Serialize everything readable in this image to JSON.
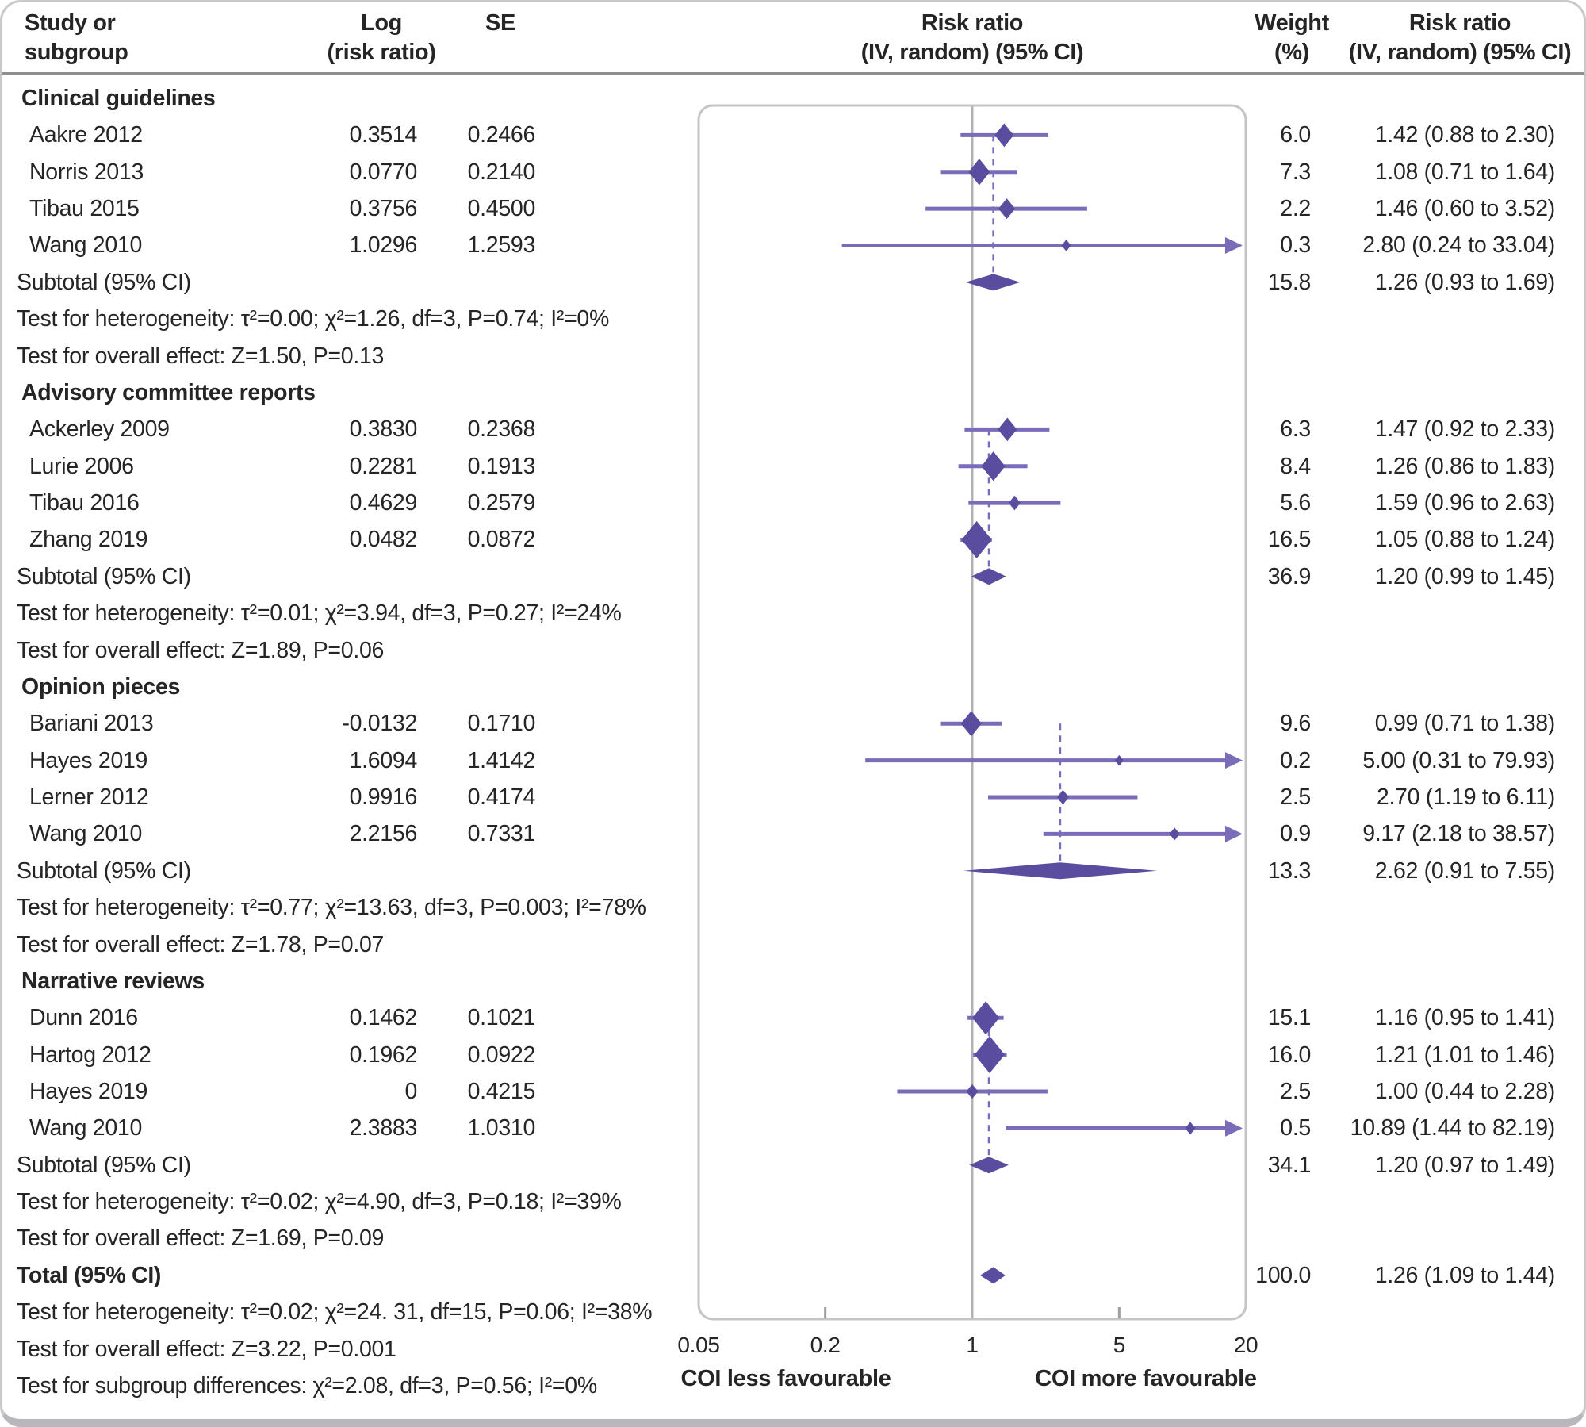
{
  "header": {
    "study": [
      "Study or",
      "subgroup"
    ],
    "log": [
      "Log",
      "(risk ratio)"
    ],
    "se": "SE",
    "rr_plot": [
      "Risk ratio",
      "(IV, random) (95% CI)"
    ],
    "weight": [
      "Weight",
      "(%)"
    ],
    "rr_text": [
      "Risk ratio",
      "(IV, random) (95% CI)"
    ]
  },
  "labels": {
    "subtotal": "Subtotal (95% CI)",
    "total": "Total (95% CI)"
  },
  "axis": {
    "min": 0.05,
    "max": 20,
    "scale": "log",
    "ticks": [
      {
        "label": "0.05",
        "value": 0.05,
        "mark": false
      },
      {
        "label": "0.2",
        "value": 0.2,
        "mark": true
      },
      {
        "label": "1",
        "value": 1,
        "mark": false
      },
      {
        "label": "5",
        "value": 5,
        "mark": true
      },
      {
        "label": "20",
        "value": 20,
        "mark": false
      }
    ],
    "reference_value": 1,
    "label_left": "COI less favourable",
    "label_right": "COI more favourable"
  },
  "colors": {
    "marker": "#5a4da0",
    "ci_line": "#7a6cb8",
    "reference_line": "#b2b2b2",
    "frame": "#c5c5c5",
    "text": "#252525",
    "header_rule": "#8f8f8f"
  },
  "chart_data": {
    "type": "forest",
    "effect_measure": "Risk ratio (IV, random) (95% CI)",
    "groups": [
      {
        "name": "Clinical guidelines",
        "studies": [
          {
            "study": "Aakre 2012",
            "log_rr": "0.3514",
            "se": "0.2466",
            "weight": "6.0",
            "rr": 1.42,
            "ci_low": 0.88,
            "ci_high": 2.3,
            "rr_ci": "1.42 (0.88 to 2.30)",
            "marker": 24
          },
          {
            "study": "Norris 2013",
            "log_rr": "0.0770",
            "se": "0.2140",
            "weight": "7.3",
            "rr": 1.08,
            "ci_low": 0.71,
            "ci_high": 1.64,
            "rr_ci": "1.08 (0.71 to 1.64)",
            "marker": 27
          },
          {
            "study": "Tibau 2015",
            "log_rr": "0.3756",
            "se": "0.4500",
            "weight": "2.2",
            "rr": 1.46,
            "ci_low": 0.6,
            "ci_high": 3.52,
            "rr_ci": "1.46 (0.60 to 3.52)",
            "marker": 21
          },
          {
            "study": "Wang 2010",
            "log_rr": "1.0296",
            "se": "1.2593",
            "weight": "0.3",
            "rr": 2.8,
            "ci_low": 0.24,
            "ci_high": 33.04,
            "rr_ci": "2.80 (0.24 to 33.04)",
            "marker": 12
          }
        ],
        "subtotal": {
          "weight": "15.8",
          "rr": 1.26,
          "ci_low": 0.93,
          "ci_high": 1.69,
          "rr_ci": "1.26 (0.93 to 1.69)"
        },
        "heterogeneity": "Test for heterogeneity: τ²=0.00; χ²=1.26, df=3, P=0.74; I²=0%",
        "overall_effect": "Test for overall effect: Z=1.50, P=0.13"
      },
      {
        "name": "Advisory committee reports",
        "studies": [
          {
            "study": "Ackerley 2009",
            "log_rr": "0.3830",
            "se": "0.2368",
            "weight": "6.3",
            "rr": 1.47,
            "ci_low": 0.92,
            "ci_high": 2.33,
            "rr_ci": "1.47 (0.92 to 2.33)",
            "marker": 24
          },
          {
            "study": "Lurie 2006",
            "log_rr": "0.2281",
            "se": "0.1913",
            "weight": "8.4",
            "rr": 1.26,
            "ci_low": 0.86,
            "ci_high": 1.83,
            "rr_ci": "1.26 (0.86 to 1.83)",
            "marker": 30
          },
          {
            "study": "Tibau 2016",
            "log_rr": "0.4629",
            "se": "0.2579",
            "weight": "5.6",
            "rr": 1.59,
            "ci_low": 0.96,
            "ci_high": 2.63,
            "rr_ci": "1.59 (0.96 to 2.63)",
            "marker": 15
          },
          {
            "study": "Zhang 2019",
            "log_rr": "0.0482",
            "se": "0.0872",
            "weight": "16.5",
            "rr": 1.05,
            "ci_low": 0.88,
            "ci_high": 1.24,
            "rr_ci": "1.05 (0.88 to 1.24)",
            "marker": 38
          }
        ],
        "subtotal": {
          "weight": "36.9",
          "rr": 1.2,
          "ci_low": 0.99,
          "ci_high": 1.45,
          "rr_ci": "1.20 (0.99 to 1.45)"
        },
        "heterogeneity": "Test for heterogeneity: τ²=0.01; χ²=3.94, df=3, P=0.27; I²=24%",
        "overall_effect": "Test for overall effect: Z=1.89, P=0.06"
      },
      {
        "name": "Opinion pieces",
        "studies": [
          {
            "study": "Bariani 2013",
            "log_rr": "-0.0132",
            "se": "0.1710",
            "weight": "9.6",
            "rr": 0.99,
            "ci_low": 0.71,
            "ci_high": 1.38,
            "rr_ci": "0.99 (0.71 to 1.38)",
            "marker": 26
          },
          {
            "study": "Hayes 2019",
            "log_rr": "1.6094",
            "se": "1.4142",
            "weight": "0.2",
            "rr": 5.0,
            "ci_low": 0.31,
            "ci_high": 79.93,
            "rr_ci": "5.00 (0.31 to 79.93)",
            "marker": 11
          },
          {
            "study": "Lerner 2012",
            "log_rr": "0.9916",
            "se": "0.4174",
            "weight": "2.5",
            "rr": 2.7,
            "ci_low": 1.19,
            "ci_high": 6.11,
            "rr_ci": "2.70 (1.19 to 6.11)",
            "marker": 15
          },
          {
            "study": "Wang 2010",
            "log_rr": "2.2156",
            "se": "0.7331",
            "weight": "0.9",
            "rr": 9.17,
            "ci_low": 2.18,
            "ci_high": 38.57,
            "rr_ci": "9.17 (2.18 to 38.57)",
            "marker": 13
          }
        ],
        "subtotal": {
          "weight": "13.3",
          "rr": 2.62,
          "ci_low": 0.91,
          "ci_high": 7.55,
          "rr_ci": "2.62 (0.91 to 7.55)"
        },
        "heterogeneity": "Test for heterogeneity: τ²=0.77; χ²=13.63, df=3, P=0.003; I²=78%",
        "overall_effect": "Test for overall effect: Z=1.78, P=0.07"
      },
      {
        "name": "Narrative reviews",
        "studies": [
          {
            "study": "Dunn 2016",
            "log_rr": "0.1462",
            "se": "0.1021",
            "weight": "15.1",
            "rr": 1.16,
            "ci_low": 0.95,
            "ci_high": 1.41,
            "rr_ci": "1.16 (0.95 to 1.41)",
            "marker": 34
          },
          {
            "study": "Hartog 2012",
            "log_rr": "0.1962",
            "se": "0.0922",
            "weight": "16.0",
            "rr": 1.21,
            "ci_low": 1.01,
            "ci_high": 1.46,
            "rr_ci": "1.21 (1.01 to 1.46)",
            "marker": 38
          },
          {
            "study": "Hayes 2019",
            "log_rr": "0",
            "se": "0.4215",
            "weight": "2.5",
            "rr": 1.0,
            "ci_low": 0.44,
            "ci_high": 2.28,
            "rr_ci": "1.00 (0.44 to 2.28)",
            "marker": 15
          },
          {
            "study": "Wang 2010",
            "log_rr": "2.3883",
            "se": "1.0310",
            "weight": "0.5",
            "rr": 10.89,
            "ci_low": 1.44,
            "ci_high": 82.19,
            "rr_ci": "10.89 (1.44 to 82.19)",
            "marker": 13
          }
        ],
        "subtotal": {
          "weight": "34.1",
          "rr": 1.2,
          "ci_low": 0.97,
          "ci_high": 1.49,
          "rr_ci": "1.20 (0.97 to 1.49)"
        },
        "heterogeneity": "Test for heterogeneity: τ²=0.02; χ²=4.90, df=3, P=0.18; I²=39%",
        "overall_effect": "Test for overall effect: Z=1.69, P=0.09"
      }
    ],
    "total": {
      "weight": "100.0",
      "rr": 1.26,
      "ci_low": 1.09,
      "ci_high": 1.44,
      "rr_ci": "1.26 (1.09 to 1.44)",
      "heterogeneity": "Test for heterogeneity: τ²=0.02; χ²=24. 31, df=15, P=0.06; I²=38%",
      "overall_effect": "Test for overall effect: Z=3.22, P=0.001",
      "subgroup_differences": "Test for subgroup differences: χ²=2.08, df=3, P=0.56; I²=0%"
    }
  }
}
